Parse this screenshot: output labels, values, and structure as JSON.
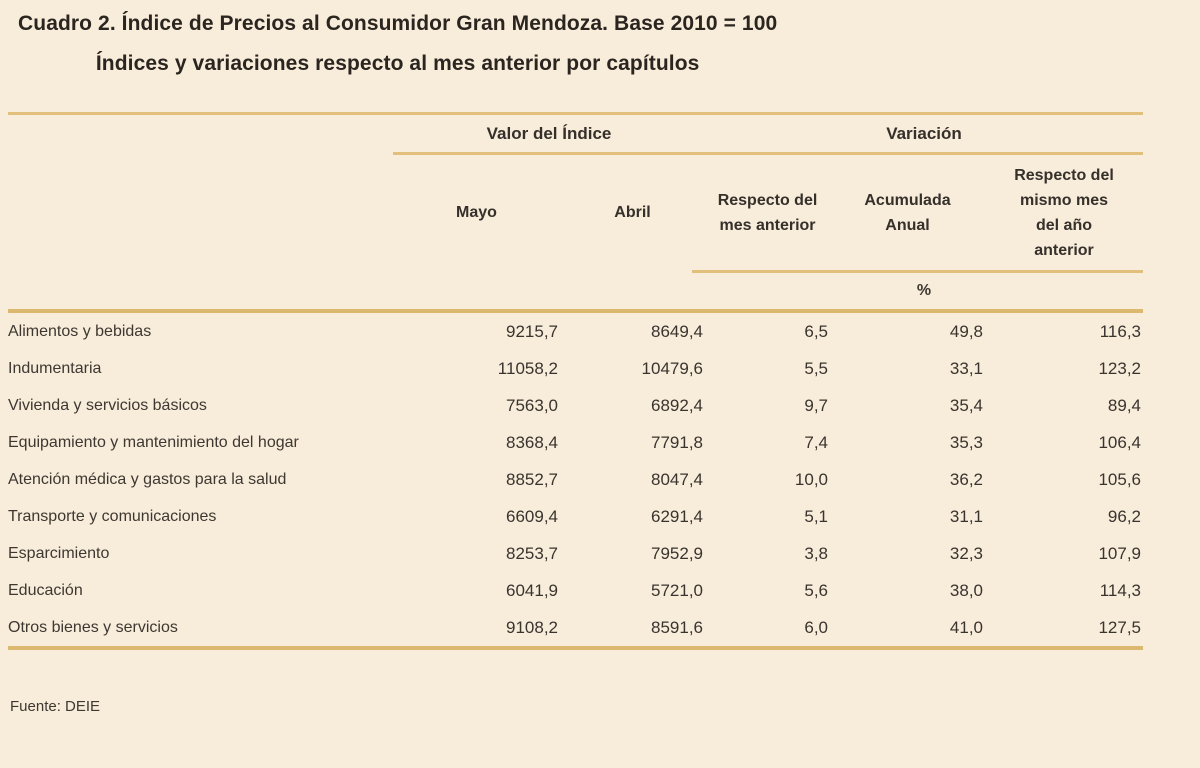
{
  "title": {
    "line1": "Cuadro 2. Índice de Precios al Consumidor Gran Mendoza. Base 2010 = 100",
    "line2": "Índices y variaciones respecto al mes anterior por capítulos"
  },
  "table": {
    "group_headers": {
      "valor_del_indice": "Valor del Índice",
      "variacion": "Variación"
    },
    "column_headers": {
      "mayo": "Mayo",
      "abril": "Abril",
      "var_mes": [
        "Respecto del",
        "mes anterior"
      ],
      "var_acum": [
        "Acumulada",
        "Anual"
      ],
      "var_yoy": [
        "Respecto del",
        "mismo mes",
        "del año",
        "anterior"
      ]
    },
    "unit_label": "%",
    "rows": [
      {
        "label": "Alimentos y bebidas",
        "mayo": "9215,7",
        "abril": "8649,4",
        "var_mes": "6,5",
        "var_acum": "49,8",
        "var_yoy": "116,3"
      },
      {
        "label": "Indumentaria",
        "mayo": "11058,2",
        "abril": "10479,6",
        "var_mes": "5,5",
        "var_acum": "33,1",
        "var_yoy": "123,2"
      },
      {
        "label": "Vivienda y servicios básicos",
        "mayo": "7563,0",
        "abril": "6892,4",
        "var_mes": "9,7",
        "var_acum": "35,4",
        "var_yoy": "89,4"
      },
      {
        "label": "Equipamiento y mantenimiento del hogar",
        "mayo": "8368,4",
        "abril": "7791,8",
        "var_mes": "7,4",
        "var_acum": "35,3",
        "var_yoy": "106,4"
      },
      {
        "label": "Atención médica y gastos para la salud",
        "mayo": "8852,7",
        "abril": "8047,4",
        "var_mes": "10,0",
        "var_acum": "36,2",
        "var_yoy": "105,6"
      },
      {
        "label": "Transporte y comunicaciones",
        "mayo": "6609,4",
        "abril": "6291,4",
        "var_mes": "5,1",
        "var_acum": "31,1",
        "var_yoy": "96,2"
      },
      {
        "label": "Esparcimiento",
        "mayo": "8253,7",
        "abril": "7952,9",
        "var_mes": "3,8",
        "var_acum": "32,3",
        "var_yoy": "107,9"
      },
      {
        "label": "Educación",
        "mayo": "6041,9",
        "abril": "5721,0",
        "var_mes": "5,6",
        "var_acum": "38,0",
        "var_yoy": "114,3"
      },
      {
        "label": "Otros bienes y servicios",
        "mayo": "9108,2",
        "abril": "8591,6",
        "var_mes": "6,0",
        "var_acum": "41,0",
        "var_yoy": "127,5"
      }
    ]
  },
  "footer": {
    "source": "Fuente: DEIE"
  },
  "colors": {
    "background": "#f8ecdb",
    "rule_gold": "#e2c07c",
    "rule_thick": "#ddb96f",
    "text": "#3e3831"
  }
}
